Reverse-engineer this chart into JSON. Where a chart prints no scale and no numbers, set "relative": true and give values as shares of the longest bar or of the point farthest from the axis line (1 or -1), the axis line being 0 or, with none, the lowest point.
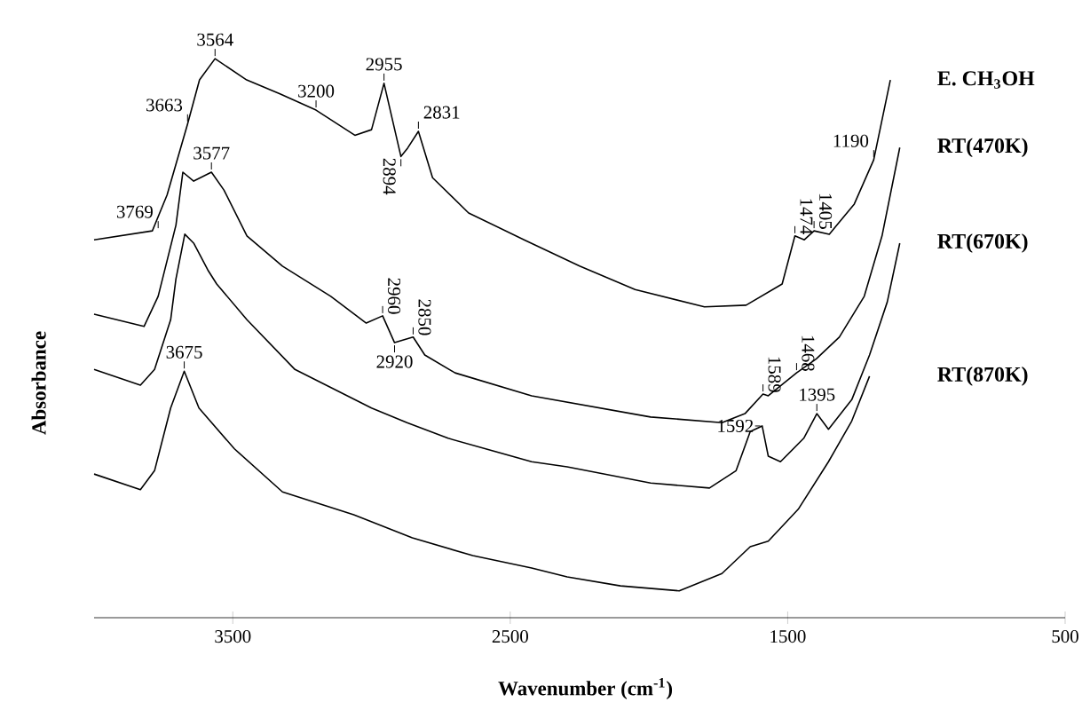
{
  "chart_data": {
    "type": "line",
    "relative": true,
    "xlabel": "Wavenumber (cm$^{-1}$)",
    "ylabel": "Absorbance",
    "xlim": [
      4000,
      500
    ],
    "xticks": [
      3500,
      2500,
      1500,
      500
    ],
    "series": [
      {
        "name": "E. CH$_{3}$OH",
        "color": "#000000",
        "x": [
          4000,
          3790,
          3737,
          3663,
          3620,
          3564,
          3450,
          3330,
          3200,
          3060,
          3000,
          2955,
          2894,
          2870,
          2831,
          2780,
          2650,
          2450,
          2250,
          2050,
          1800,
          1650,
          1520,
          1474,
          1440,
          1405,
          1350,
          1260,
          1190,
          1130
        ],
        "values": [
          0.676,
          0.692,
          0.756,
          0.883,
          0.962,
          1.0,
          0.962,
          0.937,
          0.908,
          0.863,
          0.873,
          0.956,
          0.825,
          0.84,
          0.87,
          0.787,
          0.724,
          0.676,
          0.629,
          0.587,
          0.556,
          0.559,
          0.597,
          0.683,
          0.676,
          0.692,
          0.686,
          0.74,
          0.819,
          0.962
        ]
      },
      {
        "name": "RT(470K)",
        "color": "#000000",
        "x": [
          4000,
          3820,
          3769,
          3705,
          3680,
          3641,
          3577,
          3532,
          3449,
          3321,
          3147,
          3019,
          2960,
          2917,
          2850,
          2808,
          2699,
          2423,
          1994,
          1737,
          1654,
          1589,
          1570,
          1468,
          1397,
          1314,
          1224,
          1160,
          1096
        ],
        "values": [
          0.543,
          0.521,
          0.575,
          0.702,
          0.797,
          0.781,
          0.797,
          0.765,
          0.683,
          0.629,
          0.575,
          0.527,
          0.54,
          0.492,
          0.502,
          0.47,
          0.438,
          0.397,
          0.359,
          0.349,
          0.365,
          0.4,
          0.397,
          0.438,
          0.463,
          0.502,
          0.575,
          0.683,
          0.841
        ]
      },
      {
        "name": "RT(670K)",
        "color": "#000000",
        "x": [
          4000,
          3833,
          3782,
          3724,
          3705,
          3673,
          3641,
          3590,
          3558,
          3449,
          3276,
          3000,
          2872,
          2724,
          2423,
          2295,
          1994,
          1782,
          1686,
          1635,
          1592,
          1570,
          1526,
          1442,
          1395,
          1353,
          1269,
          1205,
          1141,
          1096
        ],
        "values": [
          0.444,
          0.416,
          0.444,
          0.533,
          0.606,
          0.686,
          0.67,
          0.622,
          0.597,
          0.533,
          0.444,
          0.375,
          0.349,
          0.321,
          0.279,
          0.27,
          0.241,
          0.232,
          0.263,
          0.333,
          0.343,
          0.289,
          0.279,
          0.321,
          0.365,
          0.337,
          0.39,
          0.47,
          0.565,
          0.67
        ]
      },
      {
        "name": "RT(870K)",
        "color": "#000000",
        "x": [
          4000,
          3833,
          3782,
          3724,
          3675,
          3622,
          3494,
          3321,
          3064,
          2853,
          2635,
          2423,
          2295,
          2103,
          1891,
          1737,
          1635,
          1570,
          1462,
          1353,
          1269,
          1205
        ],
        "values": [
          0.257,
          0.229,
          0.263,
          0.375,
          0.441,
          0.375,
          0.302,
          0.225,
          0.184,
          0.143,
          0.111,
          0.089,
          0.073,
          0.057,
          0.048,
          0.079,
          0.127,
          0.137,
          0.194,
          0.279,
          0.352,
          0.432
        ]
      }
    ],
    "annotations": [
      {
        "text": "3564",
        "x": 3564,
        "y": 1.0
      },
      {
        "text": "3663",
        "x": 3663,
        "y": 0.883
      },
      {
        "text": "3200",
        "x": 3200,
        "y": 0.908
      },
      {
        "text": "2955",
        "x": 2955,
        "y": 0.956
      },
      {
        "text": "2894",
        "x": 2894,
        "y": 0.825
      },
      {
        "text": "2831",
        "x": 2831,
        "y": 0.87
      },
      {
        "text": "1190",
        "x": 1190,
        "y": 0.819
      },
      {
        "text": "1474",
        "x": 1474,
        "y": 0.683
      },
      {
        "text": "1405",
        "x": 1405,
        "y": 0.692
      },
      {
        "text": "3769",
        "x": 3769,
        "y": 0.692
      },
      {
        "text": "3577",
        "x": 3577,
        "y": 0.797
      },
      {
        "text": "2960",
        "x": 2960,
        "y": 0.54
      },
      {
        "text": "2850",
        "x": 2850,
        "y": 0.502
      },
      {
        "text": "2920",
        "x": 2917,
        "y": 0.492
      },
      {
        "text": "1589",
        "x": 1589,
        "y": 0.4
      },
      {
        "text": "1468",
        "x": 1468,
        "y": 0.438
      },
      {
        "text": "1592",
        "x": 1592,
        "y": 0.343
      },
      {
        "text": "1395",
        "x": 1395,
        "y": 0.365
      },
      {
        "text": "3675",
        "x": 3675,
        "y": 0.441
      }
    ]
  }
}
